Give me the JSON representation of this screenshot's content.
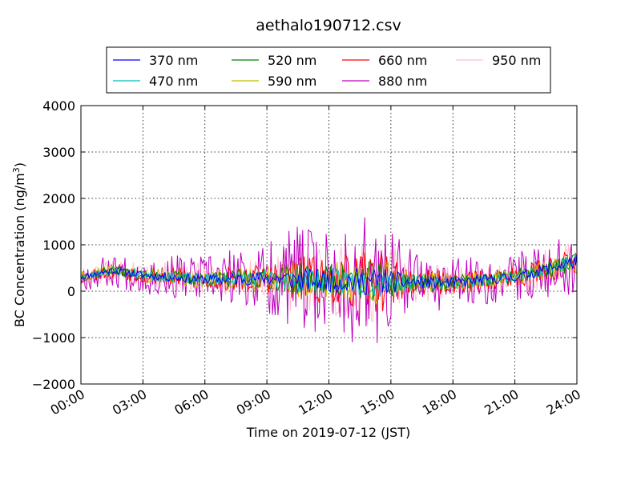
{
  "chart_data": {
    "type": "line",
    "title": "aethalo190712.csv",
    "xlabel": "Time on 2019-07-12 (JST)",
    "ylabel_main": "BC Concentration (ng/m",
    "ylabel_sup": "3",
    "ylabel_end": ")",
    "xlim": [
      0,
      24
    ],
    "ylim": [
      -2000,
      4000
    ],
    "x_ticks": [
      0,
      3,
      6,
      9,
      12,
      15,
      18,
      21,
      24
    ],
    "x_tick_labels": [
      "00:00",
      "03:00",
      "06:00",
      "09:00",
      "12:00",
      "15:00",
      "18:00",
      "21:00",
      "24:00"
    ],
    "y_ticks": [
      -2000,
      -1000,
      0,
      1000,
      2000,
      3000,
      4000
    ],
    "y_tick_labels": [
      "−2000",
      "−1000",
      "0",
      "1000",
      "2000",
      "3000",
      "4000"
    ],
    "grid": true,
    "legend_position": "top-center",
    "series": [
      {
        "name": "370 nm",
        "color": "#0000ff",
        "amp": 0.35,
        "seed": 11
      },
      {
        "name": "470 nm",
        "color": "#00bfbf",
        "amp": 0.4,
        "seed": 23
      },
      {
        "name": "520 nm",
        "color": "#008000",
        "amp": 0.5,
        "seed": 37
      },
      {
        "name": "590 nm",
        "color": "#bfbf00",
        "amp": 0.6,
        "seed": 41
      },
      {
        "name": "660 nm",
        "color": "#ff0000",
        "amp": 0.75,
        "seed": 53
      },
      {
        "name": "880 nm",
        "color": "#bf00bf",
        "amp": 1.7,
        "seed": 67
      },
      {
        "name": "950 nm",
        "color": "#ffc0cb",
        "amp": 1.15,
        "seed": 79
      }
    ]
  }
}
